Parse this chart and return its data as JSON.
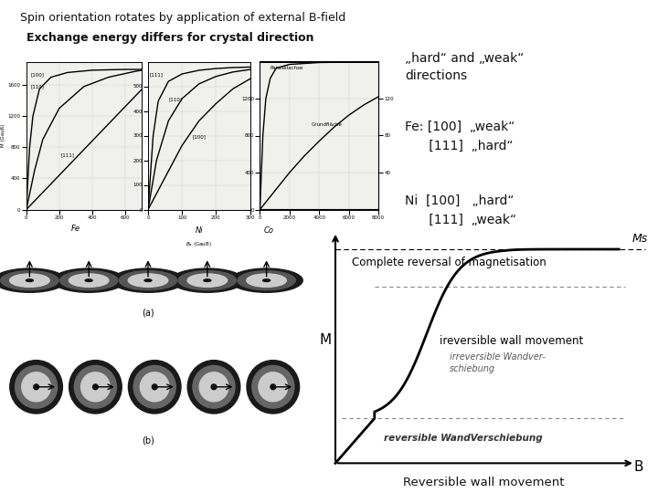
{
  "title1": "Spin orientation rotates by application of external B-field",
  "title2": "Exchange energy differs for crystal direction",
  "bg_color": "#ffffff",
  "plot_bg": "#f0f0ec",
  "text_color": "#111111",
  "annotation_hard_weak": "„hard“ and „weak“\ndirections",
  "annotation_fe": "Fe: [100]  „weak“\n      [111]  „hard“",
  "annotation_ni": "Ni  [100]   „hard“\n      [111]  „weak“",
  "annotation_complete": "Complete reversal of magnetisation",
  "annotation_irreversible": "ireversible wall movement",
  "annotation_reversible_bottom": "Reversible wall movement",
  "label_M": "M",
  "label_B": "B",
  "label_Ms": "Ms"
}
